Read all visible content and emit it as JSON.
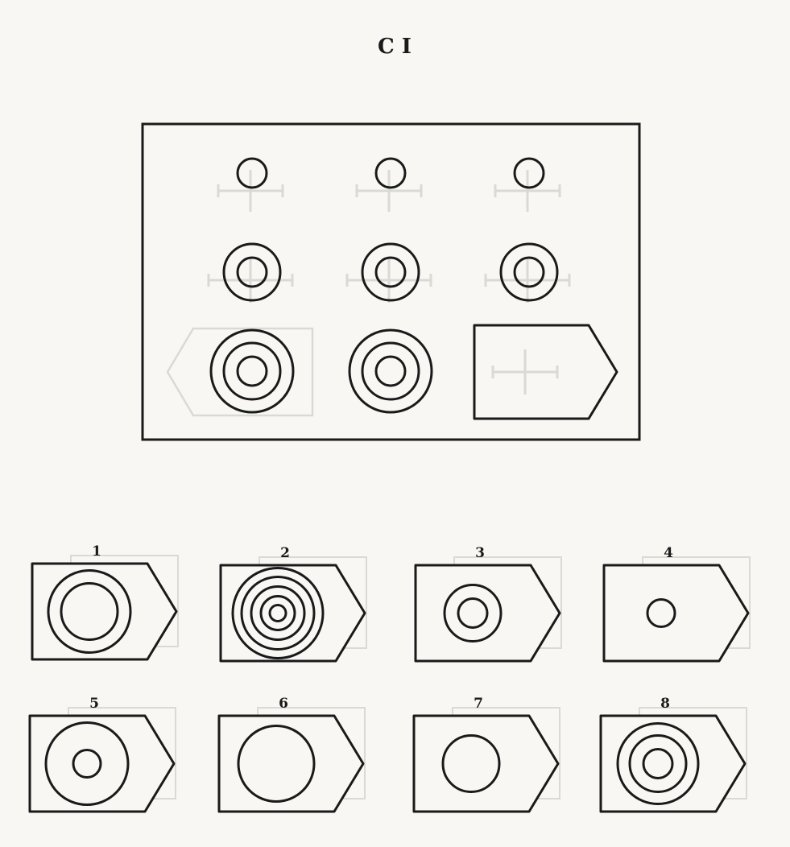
{
  "title": "C I",
  "matrix": {
    "rows": [
      [
        {
          "rings": 1
        },
        {
          "rings": 1
        },
        {
          "rings": 1
        }
      ],
      [
        {
          "rings": 2
        },
        {
          "rings": 2
        },
        {
          "rings": 2
        }
      ],
      [
        {
          "rings": 3
        },
        {
          "rings": 3
        },
        {
          "missing": true
        }
      ]
    ]
  },
  "options": [
    {
      "label": "1",
      "rings": 2,
      "ring_set": "large"
    },
    {
      "label": "2",
      "rings": 5,
      "ring_set": "large"
    },
    {
      "label": "3",
      "rings": 2,
      "ring_set": "small"
    },
    {
      "label": "4",
      "rings": 1,
      "ring_set": "small"
    },
    {
      "label": "5",
      "rings": 2,
      "ring_set": "spread"
    },
    {
      "label": "6",
      "rings": 1,
      "ring_set": "large"
    },
    {
      "label": "7",
      "rings": 1,
      "ring_set": "medium"
    },
    {
      "label": "8",
      "rings": 3,
      "ring_set": "small"
    }
  ]
}
